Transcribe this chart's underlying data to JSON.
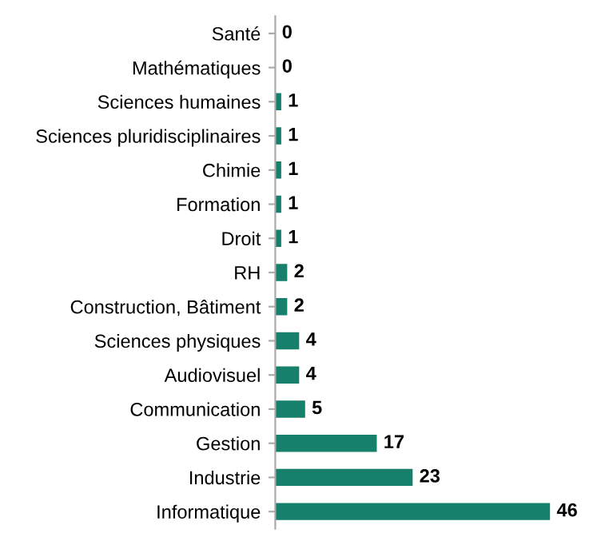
{
  "chart_data": {
    "type": "bar",
    "orientation": "horizontal",
    "categories": [
      "Santé",
      "Mathématiques",
      "Sciences humaines",
      "Sciences pluridisciplinaires",
      "Chimie",
      "Formation",
      "Droit",
      "RH",
      "Construction, Bâtiment",
      "Sciences physiques",
      "Audiovisuel",
      "Communication",
      "Gestion",
      "Industrie",
      "Informatique"
    ],
    "values": [
      0,
      0,
      1,
      1,
      1,
      1,
      1,
      2,
      2,
      4,
      4,
      5,
      17,
      23,
      46
    ],
    "color": "#16806a",
    "data_labels": true,
    "tick_labels": "y",
    "grid": false,
    "legend": false
  }
}
